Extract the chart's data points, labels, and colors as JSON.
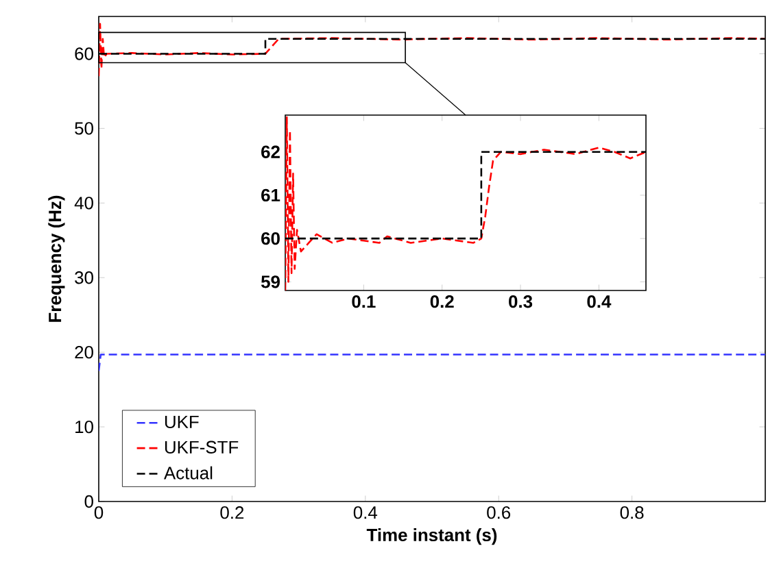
{
  "chart_data": [
    {
      "type": "line",
      "xlabel": "Time instant (s)",
      "ylabel": "Frequency (Hz)",
      "xlim": [
        0,
        1
      ],
      "ylim": [
        0,
        65
      ],
      "xticks": [
        0,
        0.2,
        0.4,
        0.6,
        0.8
      ],
      "yticks": [
        0,
        10,
        20,
        30,
        40,
        50,
        60
      ],
      "grid": false,
      "legend": "bottom left",
      "marker": "none",
      "line_style": "dashed",
      "series": [
        {
          "name": "UKF",
          "color": "#3333ff",
          "x": [
            0,
            0.003,
            1
          ],
          "values": [
            17.5,
            19.7,
            19.7
          ]
        },
        {
          "name": "UKF-STF",
          "color": "#ff0000",
          "x": [
            0,
            0.002,
            0.004,
            0.006,
            0.008,
            0.012,
            0.05,
            0.1,
            0.15,
            0.2,
            0.25,
            0.26,
            0.27,
            0.35,
            0.45,
            0.55,
            0.65,
            0.75,
            0.85,
            0.95,
            1
          ],
          "values": [
            57,
            64,
            58,
            62,
            59.5,
            60,
            60.1,
            59.9,
            60.1,
            59.9,
            60,
            61,
            62,
            62.1,
            61.9,
            62.1,
            61.9,
            62.1,
            61.9,
            62.1,
            62
          ]
        },
        {
          "name": "Actual",
          "color": "#000000",
          "x": [
            0,
            0.25,
            0.25,
            1
          ],
          "values": [
            60,
            60,
            62,
            62
          ]
        }
      ]
    },
    {
      "type": "line",
      "xlim": [
        0,
        0.46
      ],
      "ylim": [
        58.8,
        62.85
      ],
      "xticks": [
        0.1,
        0.2,
        0.3,
        0.4
      ],
      "yticks": [
        59,
        60,
        61,
        62
      ],
      "grid": false,
      "legend": false,
      "marker": "none",
      "line_style": "dashed",
      "series": [
        {
          "color": "#ff0000",
          "x": [
            0,
            0.002,
            0.004,
            0.006,
            0.008,
            0.01,
            0.012,
            0.015,
            0.02,
            0.03,
            0.04,
            0.06,
            0.08,
            0.1,
            0.12,
            0.13,
            0.16,
            0.2,
            0.24,
            0.25,
            0.255,
            0.26,
            0.265,
            0.275,
            0.3,
            0.33,
            0.37,
            0.4,
            0.42,
            0.44,
            0.46
          ],
          "values": [
            58.8,
            62.8,
            59,
            62.5,
            59.2,
            61.5,
            59.3,
            60.2,
            59.7,
            59.9,
            60.1,
            59.9,
            60,
            59.95,
            59.9,
            60.05,
            59.9,
            60,
            59.9,
            60,
            60.5,
            61.2,
            61.8,
            62,
            61.95,
            62.05,
            61.95,
            62.1,
            62,
            61.85,
            62
          ]
        },
        {
          "color": "#000000",
          "x": [
            0,
            0.25,
            0.25,
            0.46
          ],
          "values": [
            60,
            60,
            62,
            62
          ]
        }
      ]
    }
  ]
}
